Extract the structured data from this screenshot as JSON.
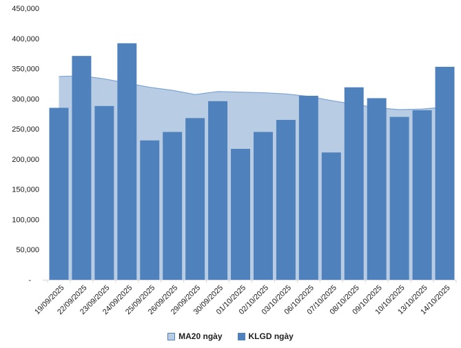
{
  "chart_data": {
    "type": "bar",
    "subtype": "area-behind-bars combo",
    "title": "",
    "xlabel": "",
    "ylabel": "",
    "grid": false,
    "legend_position": "bottom",
    "x_tick_rotation": 45,
    "ylim": [
      0,
      450000
    ],
    "categories": [
      "19/09/2025",
      "22/09/2025",
      "23/09/2025",
      "24/09/2025",
      "25/09/2025",
      "26/09/2025",
      "29/09/2025",
      "30/09/2025",
      "01/10/2025",
      "02/10/2025",
      "03/10/2025",
      "06/10/2025",
      "07/10/2025",
      "08/10/2025",
      "09/10/2025",
      "10/10/2025",
      "13/10/2025",
      "14/10/2025"
    ],
    "series": [
      {
        "name": "MA20 ngày",
        "type": "area",
        "color": "#B8CCE4",
        "line_color": "#7AA2D4",
        "values": [
          337000,
          338000,
          333000,
          326000,
          319000,
          314000,
          307000,
          312000,
          311000,
          310000,
          308000,
          304000,
          297000,
          291000,
          285000,
          282000,
          283000,
          286000
        ]
      },
      {
        "name": "KLGD ngày",
        "type": "bar",
        "color": "#4F81BD",
        "values": [
          285000,
          371000,
          288000,
          392000,
          231000,
          245000,
          268000,
          296000,
          217000,
          245000,
          265000,
          305000,
          211000,
          319000,
          301000,
          270000,
          281000,
          353000
        ]
      }
    ],
    "y_ticks": [
      {
        "value": 0,
        "label": "-"
      },
      {
        "value": 50000,
        "label": "50,000"
      },
      {
        "value": 100000,
        "label": "100,000"
      },
      {
        "value": 150000,
        "label": "150,000"
      },
      {
        "value": 200000,
        "label": "200,000"
      },
      {
        "value": 250000,
        "label": "250,000"
      },
      {
        "value": 300000,
        "label": "300,000"
      },
      {
        "value": 350000,
        "label": "350,000"
      },
      {
        "value": 400000,
        "label": "400,000"
      },
      {
        "value": 450000,
        "label": "450,000"
      }
    ],
    "axis_color": "#D9D9D9",
    "text_color": "#1a1a1a"
  }
}
